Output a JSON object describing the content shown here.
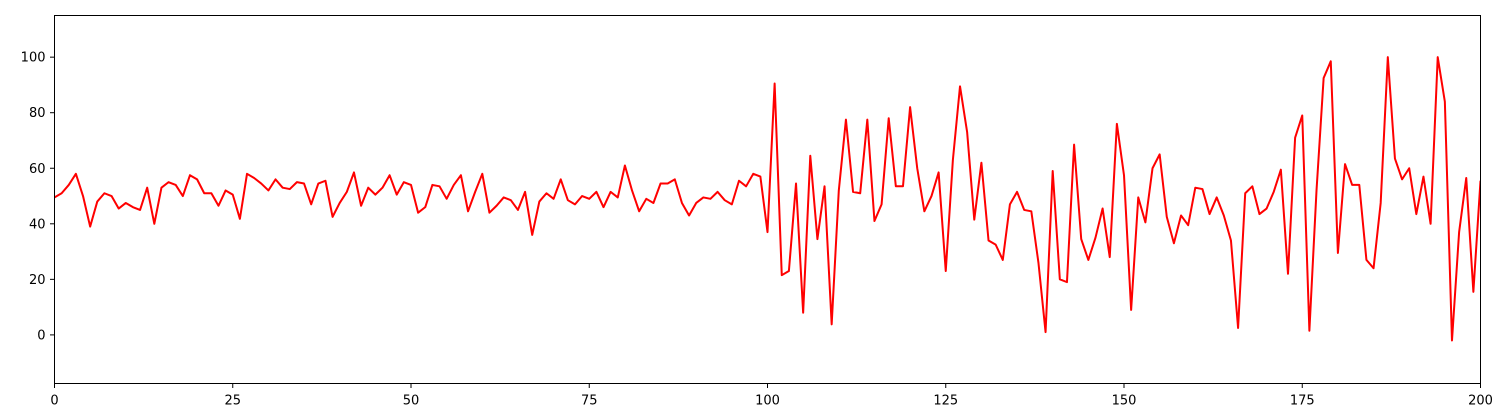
{
  "chart_data": {
    "type": "line",
    "title": "",
    "xlabel": "",
    "ylabel": "",
    "xlim": [
      0,
      200
    ],
    "ylim": [
      -17.5,
      115
    ],
    "x_ticks": [
      0,
      25,
      50,
      75,
      100,
      125,
      150,
      175,
      200
    ],
    "y_ticks": [
      0,
      20,
      40,
      60,
      80,
      100
    ],
    "grid": false,
    "legend": "none",
    "series": [
      {
        "color": "#ff0000",
        "x": [
          0,
          1,
          2,
          3,
          4,
          5,
          6,
          7,
          8,
          9,
          10,
          11,
          12,
          13,
          14,
          15,
          16,
          17,
          18,
          19,
          20,
          21,
          22,
          23,
          24,
          25,
          26,
          27,
          28,
          29,
          30,
          31,
          32,
          33,
          34,
          35,
          36,
          37,
          38,
          39,
          40,
          41,
          42,
          43,
          44,
          45,
          46,
          47,
          48,
          49,
          50,
          51,
          52,
          53,
          54,
          55,
          56,
          57,
          58,
          59,
          60,
          61,
          62,
          63,
          64,
          65,
          66,
          67,
          68,
          69,
          70,
          71,
          72,
          73,
          74,
          75,
          76,
          77,
          78,
          79,
          80,
          81,
          82,
          83,
          84,
          85,
          86,
          87,
          88,
          89,
          90,
          91,
          92,
          93,
          94,
          95,
          96,
          97,
          98,
          99,
          100,
          101,
          102,
          103,
          104,
          105,
          106,
          107,
          108,
          109,
          110,
          111,
          112,
          113,
          114,
          115,
          116,
          117,
          118,
          119,
          120,
          121,
          122,
          123,
          124,
          125,
          126,
          127,
          128,
          129,
          130,
          131,
          132,
          133,
          134,
          135,
          136,
          137,
          138,
          139,
          140,
          141,
          142,
          143,
          144,
          145,
          146,
          147,
          148,
          149,
          150,
          151,
          152,
          153,
          154,
          155,
          156,
          157,
          158,
          159,
          160,
          161,
          162,
          163,
          164,
          165,
          166,
          167,
          168,
          169,
          170,
          171,
          172,
          173,
          174,
          175,
          176,
          177,
          178,
          179,
          180,
          181,
          182,
          183,
          184,
          185,
          186,
          187,
          188,
          189,
          190,
          191,
          192,
          193,
          194,
          195,
          196,
          197,
          198,
          199,
          200
        ],
        "values": [
          49.5,
          51,
          54,
          58,
          50,
          39,
          48,
          51,
          50,
          45.5,
          47.5,
          46,
          45,
          53,
          40,
          53,
          55,
          54,
          50,
          57.5,
          56,
          51,
          51,
          46.5,
          52,
          50.5,
          41.8,
          58,
          56.5,
          54.5,
          52,
          56,
          53,
          52.5,
          55,
          54.5,
          47,
          54.5,
          55.5,
          42.5,
          47.5,
          51.5,
          58.5,
          46.5,
          53,
          50.5,
          53,
          57.5,
          50.5,
          55,
          54,
          44,
          46,
          54,
          53.5,
          49,
          54,
          57.5,
          44.5,
          51.5,
          58,
          44,
          46.5,
          49.5,
          48.5,
          45,
          51.5,
          36,
          48,
          51,
          49,
          56,
          48.5,
          47,
          50,
          49,
          51.5,
          46,
          51.5,
          49.5,
          61,
          52,
          44.5,
          49,
          47.5,
          54.5,
          54.5,
          56,
          47.5,
          43,
          47.5,
          49.5,
          49,
          51.5,
          48.5,
          47,
          55.5,
          53.5,
          58,
          57,
          37,
          90.5,
          21.5,
          23,
          54.5,
          8,
          64.5,
          34.5,
          53.5,
          3.8,
          52,
          77.5,
          51.5,
          51,
          77.5,
          41,
          47,
          78,
          53.5,
          53.5,
          82,
          60,
          44.5,
          50,
          58.5,
          23,
          63,
          89.5,
          73,
          41.5,
          62,
          34,
          32.5,
          27,
          47,
          51.5,
          45,
          44.5,
          26,
          1,
          59,
          20,
          19,
          68.5,
          34.5,
          27,
          35,
          45.5,
          28,
          76,
          57.5,
          9,
          49.5,
          40.5,
          60,
          65,
          42.5,
          33,
          43,
          39.5,
          53,
          52.5,
          43.5,
          49.5,
          43,
          34,
          2.5,
          51,
          53.5,
          43.5,
          45.5,
          51.5,
          59.5,
          22,
          71,
          79,
          1.5,
          52,
          92.5,
          98.5,
          29.5,
          61.5,
          54,
          54,
          27,
          24,
          47.5,
          100,
          63.5,
          56,
          60,
          43.5,
          57,
          40,
          100,
          84,
          -2,
          37,
          56.5,
          15.5,
          55.5
        ]
      }
    ]
  }
}
